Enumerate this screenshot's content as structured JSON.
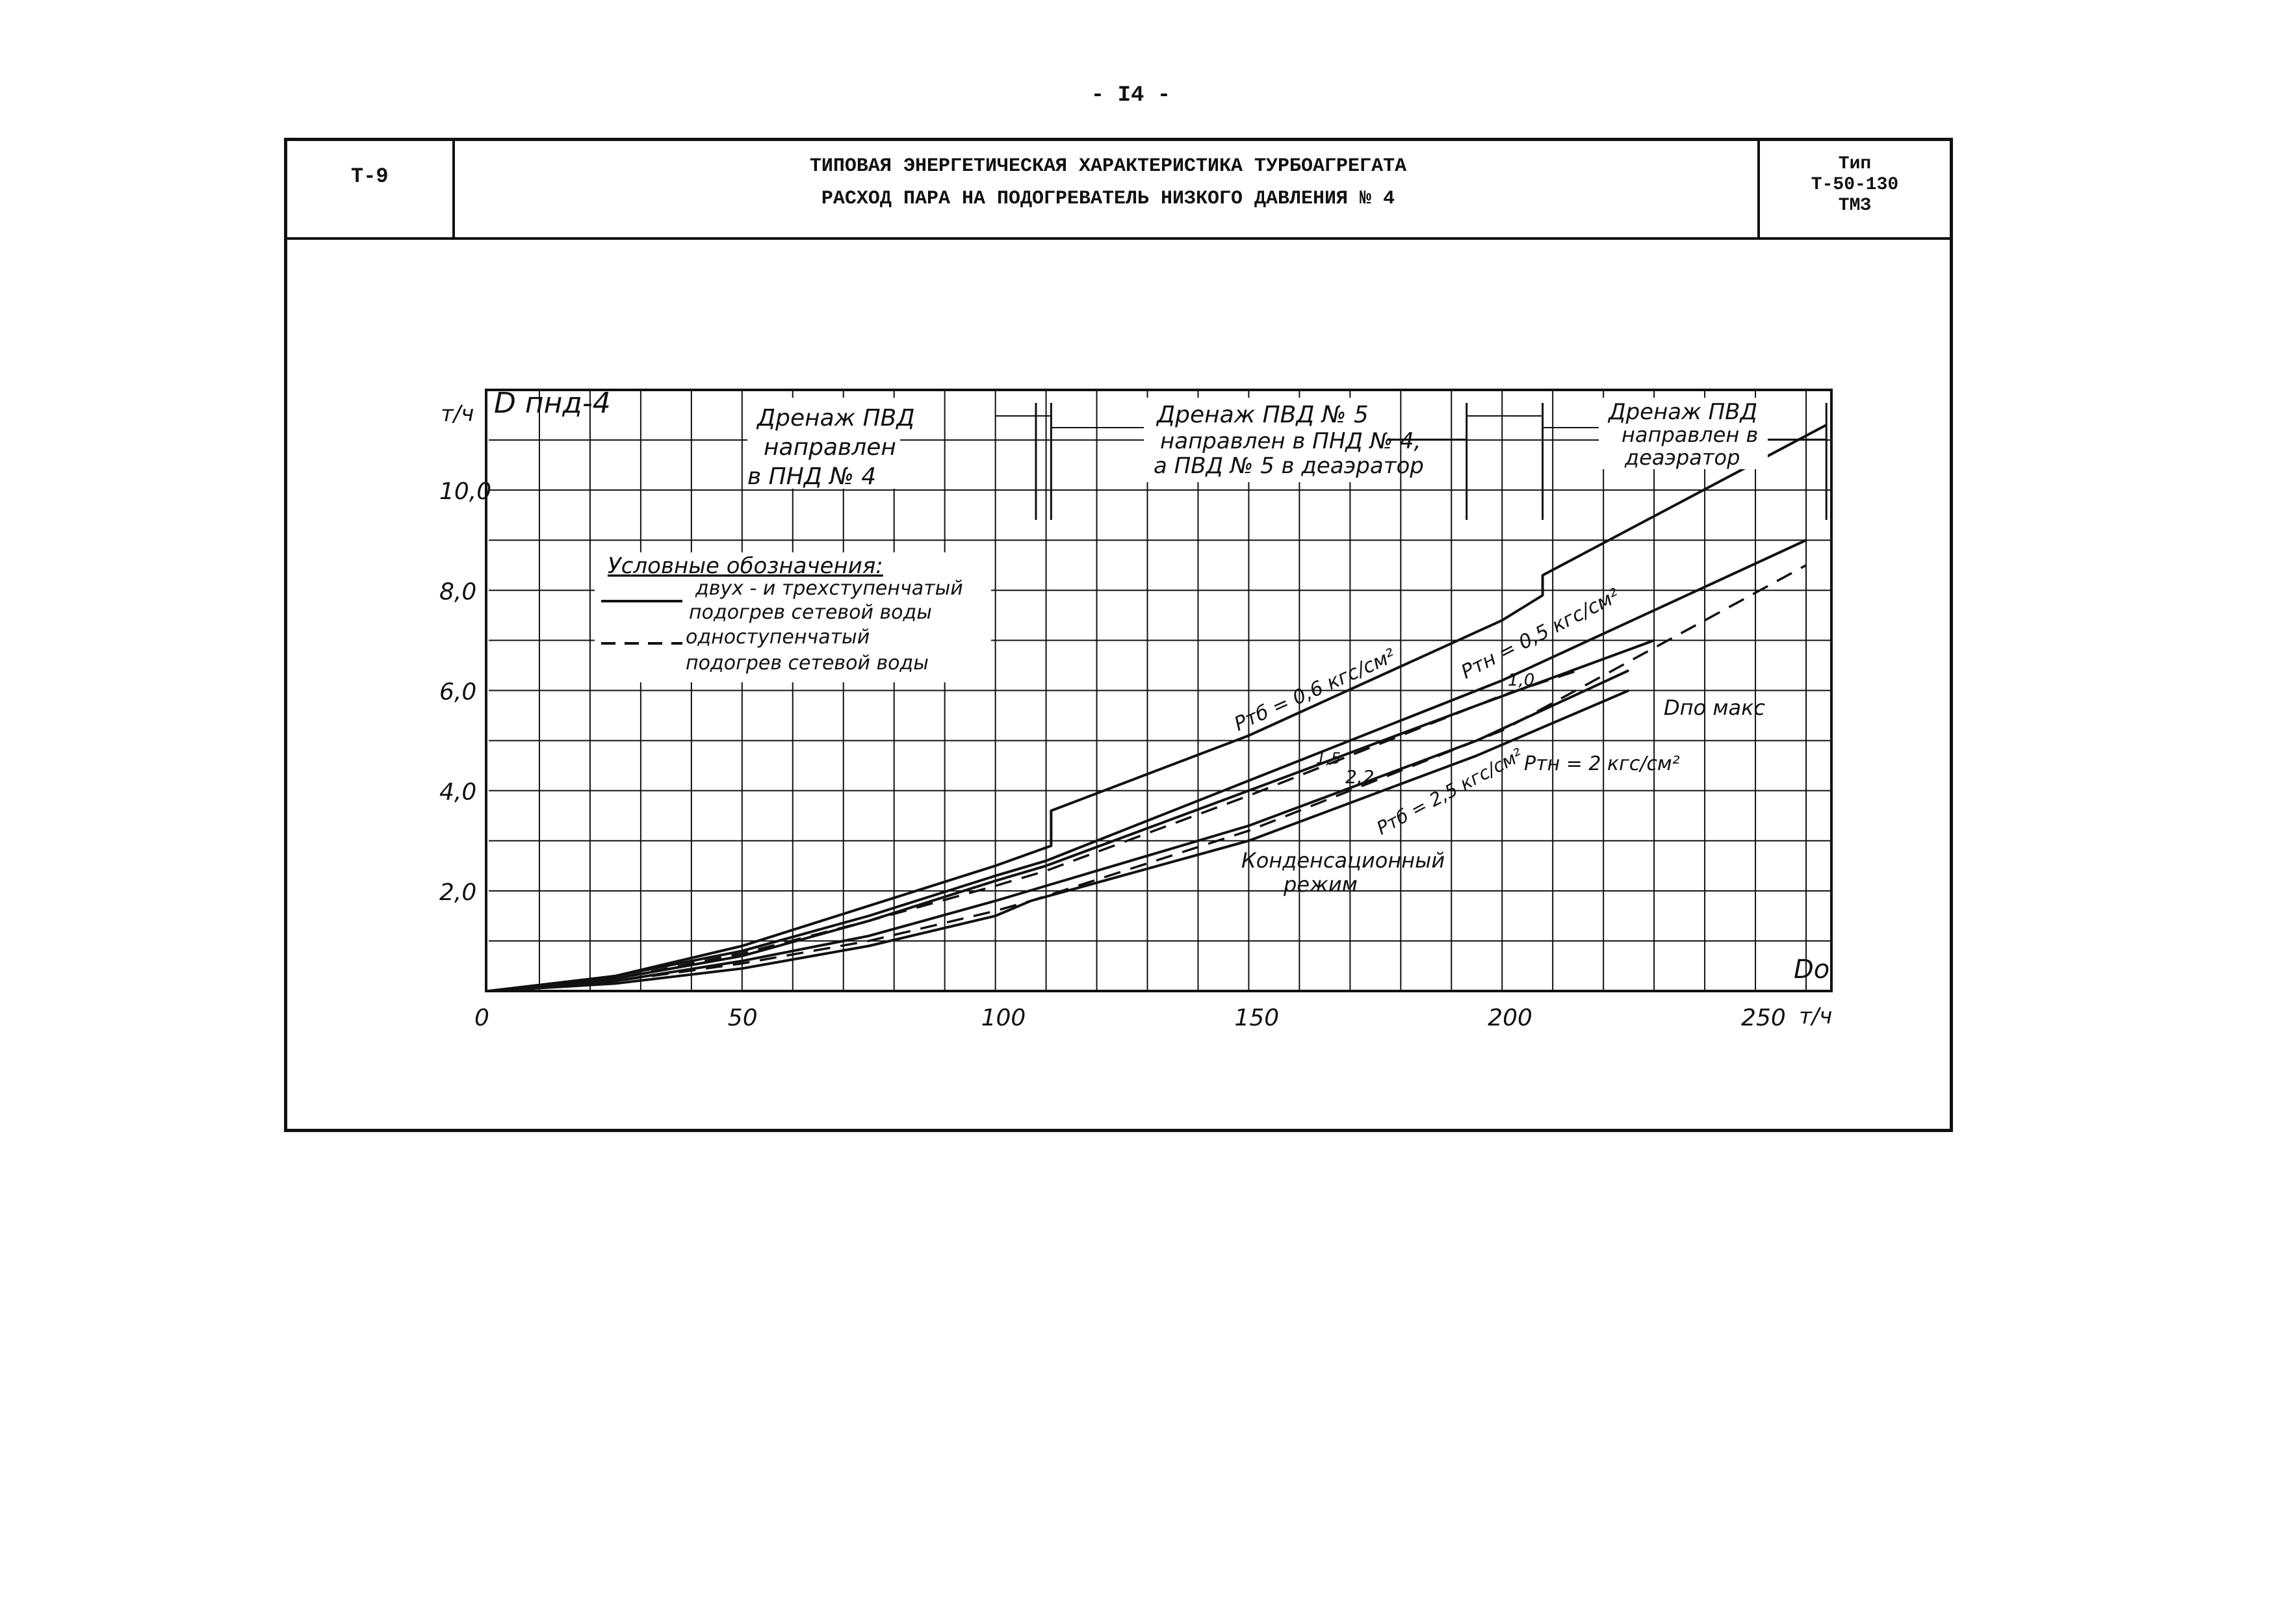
{
  "page_number": "- I4 -",
  "header": {
    "code": "Т-9",
    "title_line1": "ТИПОВАЯ ЭНЕРГЕТИЧЕСКАЯ ХАРАКТЕРИСТИКА ТУРБОАГРЕГАТА",
    "title_line2": "РАСХОД ПАРА НА ПОДОГРЕВАТЕЛЬ НИЗКОГО ДАВЛЕНИЯ № 4",
    "type_label": "Тип",
    "type_model": "Т-50-130",
    "type_plant": "ТМЗ"
  },
  "chart_data": {
    "type": "line",
    "xlabel": "Dо",
    "x_unit": "т/ч",
    "ylabel": "D пнд-4",
    "y_unit": "т/ч",
    "xlim": [
      0,
      265
    ],
    "ylim": [
      0,
      12
    ],
    "x_ticks": [
      0,
      50,
      100,
      150,
      200,
      250
    ],
    "x_tick_labels": [
      "0",
      "50",
      "100",
      "150",
      "200",
      "250"
    ],
    "y_ticks": [
      2,
      4,
      6,
      8,
      10
    ],
    "y_tick_labels": [
      "2,0",
      "4,0",
      "6,0",
      "8,0",
      "10,0"
    ],
    "grid": true,
    "legend": {
      "title": "Условные обозначения:",
      "entries": [
        {
          "style": "solid",
          "label_line1": "двух - и трехступенчатый",
          "label_line2": "подогрев сетевой воды"
        },
        {
          "style": "dashed",
          "label_line1": "одноступенчатый",
          "label_line2": "подогрев сетевой воды"
        }
      ]
    },
    "zones": [
      {
        "line1": "Дренаж ПВД",
        "line2": "направлен",
        "line3": "в ПНД № 4"
      },
      {
        "line1": "Дренаж ПВД № 5",
        "line2": "направлен в ПНД № 4,",
        "line3": "а ПВД № 5 в деаэратор"
      },
      {
        "line1": "Дренаж ПВД",
        "line2": "направлен в",
        "line3": "деаэратор"
      }
    ],
    "series": [
      {
        "style": "solid",
        "x": [
          0,
          25,
          50,
          75,
          100,
          111,
          111,
          150,
          200,
          208,
          208,
          264
        ],
        "y": [
          0,
          0.3,
          0.9,
          1.7,
          2.5,
          2.9,
          3.6,
          5.1,
          7.4,
          7.9,
          8.3,
          11.3
        ]
      },
      {
        "style": "solid",
        "x": [
          0,
          25,
          50,
          75,
          100,
          110,
          150,
          200,
          260
        ],
        "y": [
          0,
          0.3,
          0.8,
          1.5,
          2.3,
          2.6,
          4.2,
          6.2,
          9.0
        ]
      },
      {
        "style": "solid",
        "x": [
          0,
          25,
          50,
          75,
          100,
          110,
          150,
          195,
          230
        ],
        "y": [
          0,
          0.25,
          0.7,
          1.4,
          2.2,
          2.5,
          4.0,
          5.7,
          7.0
        ]
      },
      {
        "style": "solid",
        "x": [
          0,
          25,
          50,
          75,
          100,
          110,
          150,
          195,
          225
        ],
        "y": [
          0,
          0.2,
          0.6,
          1.1,
          1.8,
          2.1,
          3.3,
          5.0,
          6.4
        ]
      },
      {
        "style": "solid",
        "x": [
          0,
          25,
          50,
          75,
          100,
          107,
          150,
          195,
          225
        ],
        "y": [
          0,
          0.15,
          0.45,
          0.9,
          1.5,
          1.8,
          3.0,
          4.7,
          6.0
        ]
      },
      {
        "style": "dashed",
        "x": [
          0,
          25,
          50,
          75,
          100,
          110,
          150,
          200,
          215
        ],
        "y": [
          0,
          0.25,
          0.75,
          1.4,
          2.1,
          2.4,
          3.9,
          5.9,
          6.4
        ]
      },
      {
        "style": "dashed",
        "x": [
          0,
          25,
          50,
          75,
          100,
          107,
          150,
          200,
          260
        ],
        "y": [
          0,
          0.2,
          0.55,
          1.0,
          1.6,
          1.8,
          3.2,
          5.2,
          8.5
        ]
      }
    ],
    "annotations": [
      {
        "text": "Pтб = 0,6 кгс/см²",
        "x": 168,
        "y": 5.7
      },
      {
        "text": "Pтн = 0,5 кгс/см²",
        "x": 212,
        "y": 6.7
      },
      {
        "text": "1,0",
        "x": 204,
        "y": 6.0
      },
      {
        "text": "1,5",
        "x": 167,
        "y": 4.6
      },
      {
        "text": "2,2",
        "x": 178,
        "y": 4.2
      },
      {
        "text": "Pтб = 2,5 кгс/см²",
        "x": 184,
        "y": 3.8
      },
      {
        "text": "Pтн = 2 кгс/см²",
        "x": 220,
        "y": 4.5
      },
      {
        "text": "Dпо макс",
        "x": 238,
        "y": 5.6
      },
      {
        "text": "Конденсационный",
        "x": 160,
        "y": 2.5
      },
      {
        "text": "режим",
        "x": 165,
        "y": 2.0
      }
    ]
  }
}
